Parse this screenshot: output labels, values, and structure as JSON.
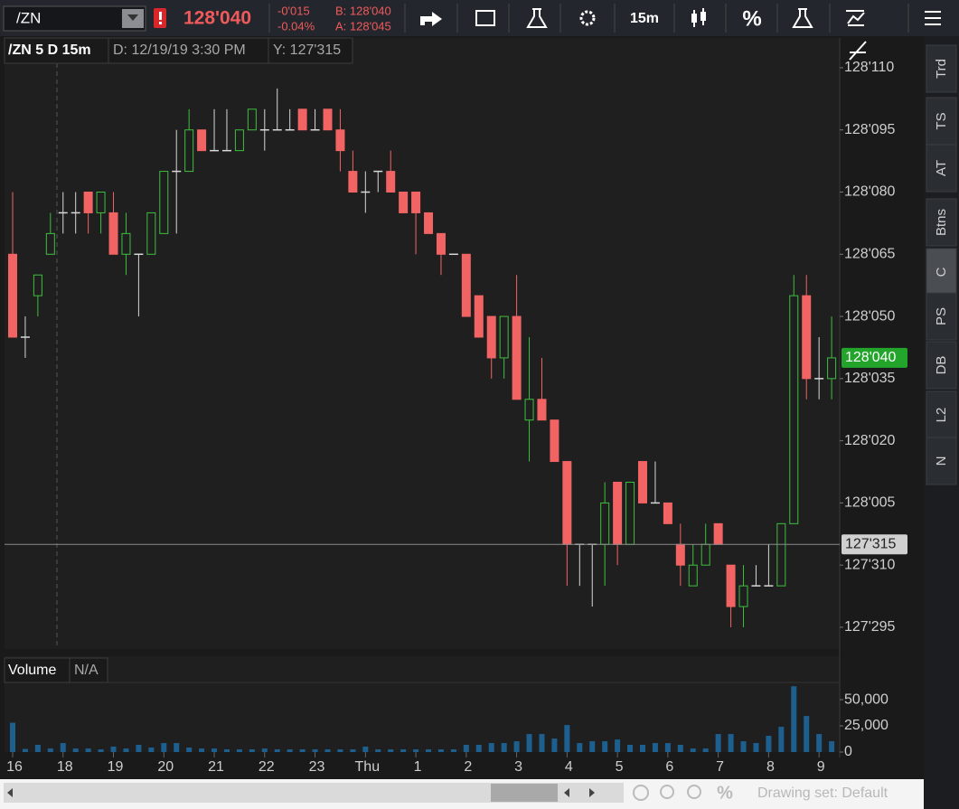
{
  "toolbar": {
    "symbol": "/ZN",
    "last": "128'040",
    "net_change": "-0'015",
    "pct_change": "-0.04%",
    "bid": "B: 128'040",
    "ask": "A: 128'045",
    "timeframe": "15m",
    "percent": "%"
  },
  "side_tabs": [
    "Trd",
    "TS",
    "AT",
    "Btns",
    "C",
    "PS",
    "DB",
    "L2",
    "N"
  ],
  "footer": {
    "drawing_set": "Drawing set: Default"
  },
  "chart_data": [
    {
      "type": "candlestick",
      "title": "/ZN 5 D 15m",
      "date_label": "D: 12/19/19 3:30 PM",
      "cursor_label": "Y: 127'315",
      "up_color": "#3fbf3f",
      "down_color": "#f26464",
      "flat_color": "#d8d8d8",
      "ylim": [
        127.9055,
        128.3662
      ],
      "yticks": [
        {
          "value": 127.921875,
          "label": "127'295"
        },
        {
          "value": 127.96875,
          "label": "127'310"
        },
        {
          "value": 128.015625,
          "label": "128'005"
        },
        {
          "value": 128.0625,
          "label": "128'020"
        },
        {
          "value": 128.109375,
          "label": "128'035"
        },
        {
          "value": 128.15625,
          "label": "128'050"
        },
        {
          "value": 128.203125,
          "label": "128'065"
        },
        {
          "value": 128.25,
          "label": "128'080"
        },
        {
          "value": 128.296875,
          "label": "128'095"
        },
        {
          "value": 128.34375,
          "label": "128'110"
        }
      ],
      "last_price": {
        "value": 128.125,
        "label": "128'040"
      },
      "crosshair": {
        "value": 127.984375,
        "label": "127'315"
      },
      "open": [
        128.203125,
        128.140625,
        128.171875,
        128.203125,
        128.234375,
        128.234375,
        128.25,
        128.234375,
        128.234375,
        128.203125,
        128.203125,
        128.203125,
        128.21875,
        128.265625,
        128.265625,
        128.296875,
        128.28125,
        128.28125,
        128.28125,
        128.296875,
        128.296875,
        128.296875,
        128.296875,
        128.3125,
        128.296875,
        128.3125,
        128.296875,
        128.265625,
        128.25,
        128.265625,
        128.265625,
        128.25,
        128.25,
        128.234375,
        128.21875,
        128.203125,
        128.203125,
        128.171875,
        128.15625,
        128.125,
        128.15625,
        128.078125,
        128.09375,
        128.078125,
        128.046875,
        127.984375,
        127.984375,
        127.984375,
        128.03125,
        127.984375,
        128.046875,
        128.015625,
        128.015625,
        127.984375,
        127.953125,
        127.96875,
        128,
        127.96875,
        127.9375,
        127.953125,
        127.953125,
        127.953125,
        128,
        128.171875,
        128.109375,
        128.109375
      ],
      "high": [
        128.25,
        128.15625,
        128.1875,
        128.234375,
        128.25,
        128.25,
        128.25,
        128.25,
        128.25,
        128.234375,
        128.203125,
        128.234375,
        128.265625,
        128.296875,
        128.3125,
        128.296875,
        128.3125,
        128.3125,
        128.296875,
        128.3125,
        128.3125,
        128.328125,
        128.3125,
        128.3125,
        128.3125,
        128.3125,
        128.3125,
        128.28125,
        128.265625,
        128.265625,
        128.28125,
        128.25,
        128.25,
        128.234375,
        128.21875,
        128.203125,
        128.203125,
        128.171875,
        128.15625,
        128.15625,
        128.1875,
        128.140625,
        128.125,
        128.078125,
        128.046875,
        127.984375,
        127.984375,
        128.03125,
        128.03125,
        128.03125,
        128.046875,
        128.046875,
        128.015625,
        128,
        127.984375,
        128,
        128,
        127.96875,
        127.96875,
        127.96875,
        127.984375,
        128,
        128.1875,
        128.1875,
        128.140625,
        128.15625
      ],
      "low": [
        128.140625,
        128.125,
        128.15625,
        128.203125,
        128.21875,
        128.21875,
        128.21875,
        128.21875,
        128.203125,
        128.1875,
        128.15625,
        128.203125,
        128.21875,
        128.21875,
        128.265625,
        128.28125,
        128.28125,
        128.28125,
        128.28125,
        128.296875,
        128.28125,
        128.296875,
        128.296875,
        128.296875,
        128.296875,
        128.296875,
        128.265625,
        128.25,
        128.234375,
        128.25,
        128.25,
        128.234375,
        128.203125,
        128.21875,
        128.1875,
        128.203125,
        128.15625,
        128.140625,
        128.109375,
        128.109375,
        128.09375,
        128.046875,
        128.078125,
        128.046875,
        127.953125,
        127.953125,
        127.9375,
        127.953125,
        127.96875,
        127.984375,
        128.015625,
        128.015625,
        128,
        127.953125,
        127.953125,
        127.96875,
        127.984375,
        127.921875,
        127.921875,
        127.953125,
        127.953125,
        127.953125,
        128,
        128.09375,
        128.09375,
        128.09375
      ],
      "close": [
        128.140625,
        128.140625,
        128.1875,
        128.21875,
        128.234375,
        128.234375,
        128.234375,
        128.25,
        128.203125,
        128.21875,
        128.203125,
        128.234375,
        128.265625,
        128.265625,
        128.296875,
        128.28125,
        128.28125,
        128.28125,
        128.296875,
        128.3125,
        128.296875,
        128.296875,
        128.296875,
        128.296875,
        128.296875,
        128.296875,
        128.28125,
        128.25,
        128.25,
        128.265625,
        128.25,
        128.234375,
        128.234375,
        128.21875,
        128.203125,
        128.203125,
        128.15625,
        128.140625,
        128.125,
        128.15625,
        128.09375,
        128.09375,
        128.078125,
        128.046875,
        127.984375,
        127.984375,
        127.984375,
        128.015625,
        127.984375,
        128.03125,
        128.015625,
        128.015625,
        128,
        127.96875,
        127.96875,
        127.984375,
        127.984375,
        127.9375,
        127.953125,
        127.953125,
        127.953125,
        128,
        128.171875,
        128.109375,
        128.109375,
        128.125
      ]
    },
    {
      "type": "bar",
      "title": "Volume",
      "subtitle": "N/A",
      "color": "#1d5f8f",
      "categories": [
        "16",
        null,
        null,
        null,
        "18",
        null,
        null,
        null,
        "19",
        null,
        null,
        null,
        "20",
        null,
        null,
        null,
        "21",
        null,
        null,
        null,
        "22",
        null,
        null,
        null,
        "23",
        null,
        null,
        null,
        "Thu",
        null,
        null,
        null,
        "1",
        null,
        null,
        null,
        "2",
        null,
        null,
        null,
        "3",
        null,
        null,
        null,
        "4",
        null,
        null,
        null,
        "5",
        null,
        null,
        null,
        "6",
        null,
        null,
        null,
        "7",
        null,
        null,
        null,
        "8",
        null,
        null,
        null,
        "9",
        null
      ],
      "values": [
        28000,
        3000,
        6900,
        3400,
        8600,
        3400,
        3400,
        2600,
        5200,
        3400,
        6900,
        4300,
        8600,
        8600,
        4300,
        3400,
        3400,
        2600,
        2600,
        2600,
        3400,
        2600,
        2600,
        2600,
        2600,
        2600,
        2600,
        2600,
        5200,
        2600,
        2600,
        2600,
        2600,
        2600,
        2600,
        2600,
        6900,
        6900,
        8600,
        8600,
        10300,
        17200,
        17200,
        12900,
        25800,
        8600,
        10300,
        10300,
        12000,
        6900,
        6900,
        8600,
        8600,
        6900,
        3400,
        3400,
        17200,
        17200,
        10300,
        8600,
        15500,
        24100,
        62800,
        34400,
        17200,
        10300
      ],
      "ylim": [
        0,
        64700
      ],
      "yticks": [
        0,
        {
          "value": 25000,
          "label": "25,000"
        },
        {
          "value": 50000,
          "label": "50,000"
        }
      ]
    }
  ]
}
